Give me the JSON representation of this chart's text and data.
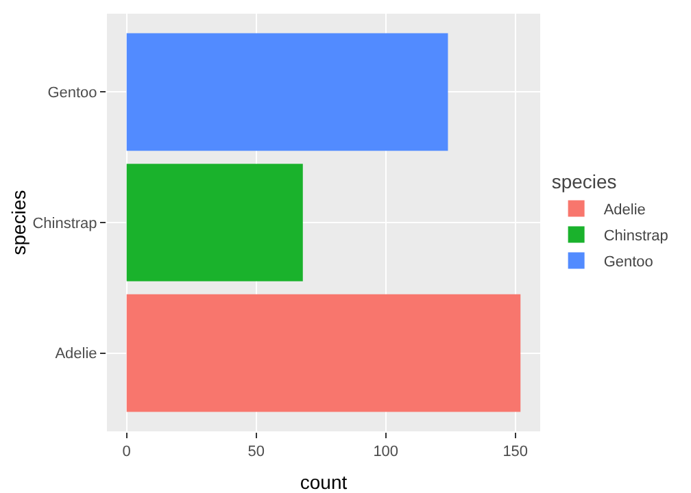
{
  "chart_data": {
    "type": "bar",
    "orientation": "horizontal",
    "xlabel": "count",
    "ylabel": "species",
    "legend_title": "species",
    "categories": [
      "Gentoo",
      "Chinstrap",
      "Adelie"
    ],
    "series": [
      {
        "name": "Adelie",
        "color": "#f8766d",
        "values": [
          null,
          null,
          152
        ]
      },
      {
        "name": "Chinstrap",
        "color": "#1ab22c",
        "values": [
          null,
          68,
          null
        ]
      },
      {
        "name": "Gentoo",
        "color": "#528bff",
        "values": [
          124,
          null,
          null
        ]
      }
    ],
    "xlim": [
      -7.6,
      159.6
    ],
    "xticks": [
      0,
      50,
      100,
      150
    ],
    "grid": true,
    "legend": "right"
  }
}
